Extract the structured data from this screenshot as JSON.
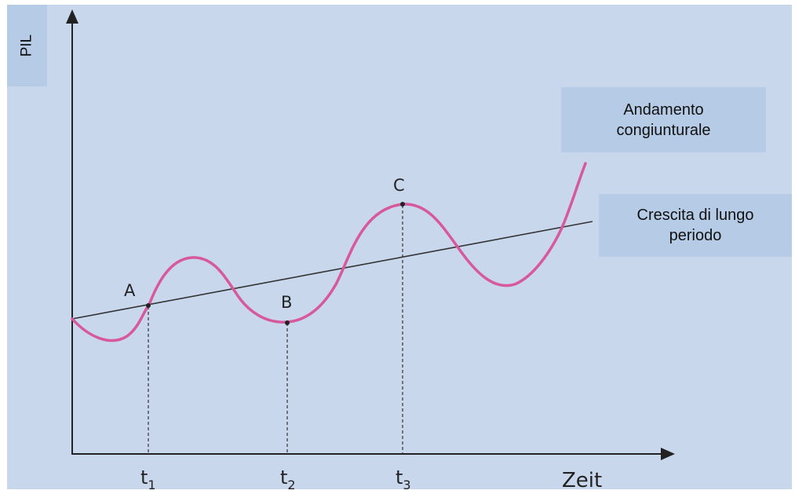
{
  "axes": {
    "y_label": "PIL",
    "x_label": "Zeit"
  },
  "series": {
    "cycle_label": "Andamento\ncongiunturale",
    "trend_label": "Crescita di lungo\nperiodo"
  },
  "points": {
    "a": "A",
    "b": "B",
    "c": "C"
  },
  "ticks": [
    {
      "t": "t",
      "sub": "1"
    },
    {
      "t": "t",
      "sub": "2"
    },
    {
      "t": "t",
      "sub": "3"
    }
  ],
  "colors": {
    "curve": "#d7589c",
    "axis": "#222222",
    "panel": "#c8d7ec",
    "label_box": "#b6cbe6"
  }
}
